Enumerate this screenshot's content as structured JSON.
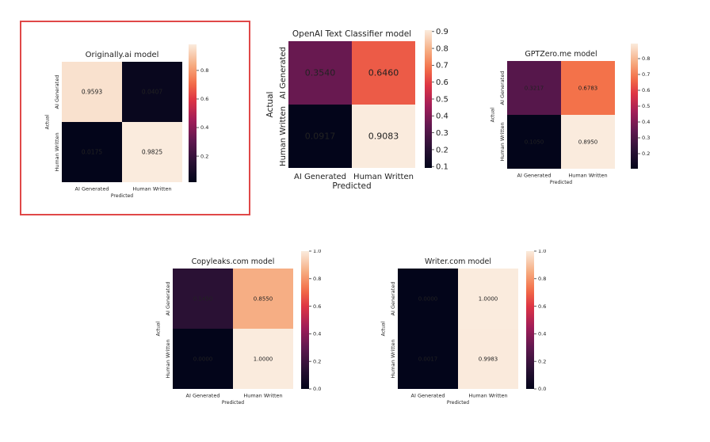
{
  "chart_data": [
    {
      "type": "heatmap",
      "title": "Originally.ai model",
      "xlabel": "Predicted",
      "ylabel": "Actual",
      "row_labels": [
        "AI Generated",
        "Human Written"
      ],
      "col_labels": [
        "AI Generated",
        "Human Written"
      ],
      "values": [
        [
          0.9593,
          0.0407
        ],
        [
          0.0175,
          0.9825
        ]
      ],
      "value_labels": [
        [
          "0.9593",
          "0.0407"
        ],
        [
          "0.0175",
          "0.9825"
        ]
      ],
      "colorbar": {
        "range": [
          0.0175,
          0.9825
        ],
        "ticks": [
          "0.2",
          "0.4",
          "0.6",
          "0.8"
        ]
      },
      "highlighted": true
    },
    {
      "type": "heatmap",
      "title": "OpenAI Text Classifier model",
      "xlabel": "Predicted",
      "ylabel": "Actual",
      "row_labels": [
        "AI Generated",
        "Human Written"
      ],
      "col_labels": [
        "AI Generated",
        "Human Written"
      ],
      "values": [
        [
          0.354,
          0.646
        ],
        [
          0.0917,
          0.9083
        ]
      ],
      "value_labels": [
        [
          "0.3540",
          "0.6460"
        ],
        [
          "0.0917",
          "0.9083"
        ]
      ],
      "colorbar": {
        "range": [
          0.0917,
          0.9083
        ],
        "ticks": [
          "0.1",
          "0.2",
          "0.3",
          "0.4",
          "0.5",
          "0.6",
          "0.7",
          "0.8",
          "0.9"
        ]
      },
      "highlighted": false
    },
    {
      "type": "heatmap",
      "title": "GPTZero.me model",
      "xlabel": "Predicted",
      "ylabel": "Actual",
      "row_labels": [
        "AI Generated",
        "Human Written"
      ],
      "col_labels": [
        "AI Generated",
        "Human Written"
      ],
      "values": [
        [
          0.3217,
          0.6783
        ],
        [
          0.105,
          0.895
        ]
      ],
      "value_labels": [
        [
          "0.3217",
          "0.6783"
        ],
        [
          "0.1050",
          "0.8950"
        ]
      ],
      "colorbar": {
        "range": [
          0.105,
          0.895
        ],
        "ticks": [
          "0.2",
          "0.3",
          "0.4",
          "0.5",
          "0.6",
          "0.7",
          "0.8"
        ]
      },
      "highlighted": false
    },
    {
      "type": "heatmap",
      "title": "Copyleaks.com model",
      "xlabel": "Predicted",
      "ylabel": "Actual",
      "row_labels": [
        "AI Generated",
        "Human Written"
      ],
      "col_labels": [
        "AI Generated",
        "Human Written"
      ],
      "values": [
        [
          0.145,
          0.855
        ],
        [
          0.0,
          1.0
        ]
      ],
      "value_labels": [
        [
          "0.1450",
          "0.8550"
        ],
        [
          "0.0000",
          "1.0000"
        ]
      ],
      "colorbar": {
        "range": [
          0.0,
          1.0
        ],
        "ticks": [
          "0.0",
          "0.2",
          "0.4",
          "0.6",
          "0.8",
          "1.0"
        ]
      },
      "highlighted": false
    },
    {
      "type": "heatmap",
      "title": "Writer.com model",
      "xlabel": "Predicted",
      "ylabel": "Actual",
      "row_labels": [
        "AI Generated",
        "Human Written"
      ],
      "col_labels": [
        "AI Generated",
        "Human Written"
      ],
      "values": [
        [
          0.0,
          1.0
        ],
        [
          0.0017,
          0.9983
        ]
      ],
      "value_labels": [
        [
          "0.0000",
          "1.0000"
        ],
        [
          "0.0017",
          "0.9983"
        ]
      ],
      "colorbar": {
        "range": [
          0.0,
          1.0
        ],
        "ticks": [
          "0.0",
          "0.2",
          "0.4",
          "0.6",
          "0.8",
          "1.0"
        ]
      },
      "highlighted": false
    }
  ],
  "colors": {
    "highlight_border": "#e04848",
    "colormap": "rocket"
  }
}
